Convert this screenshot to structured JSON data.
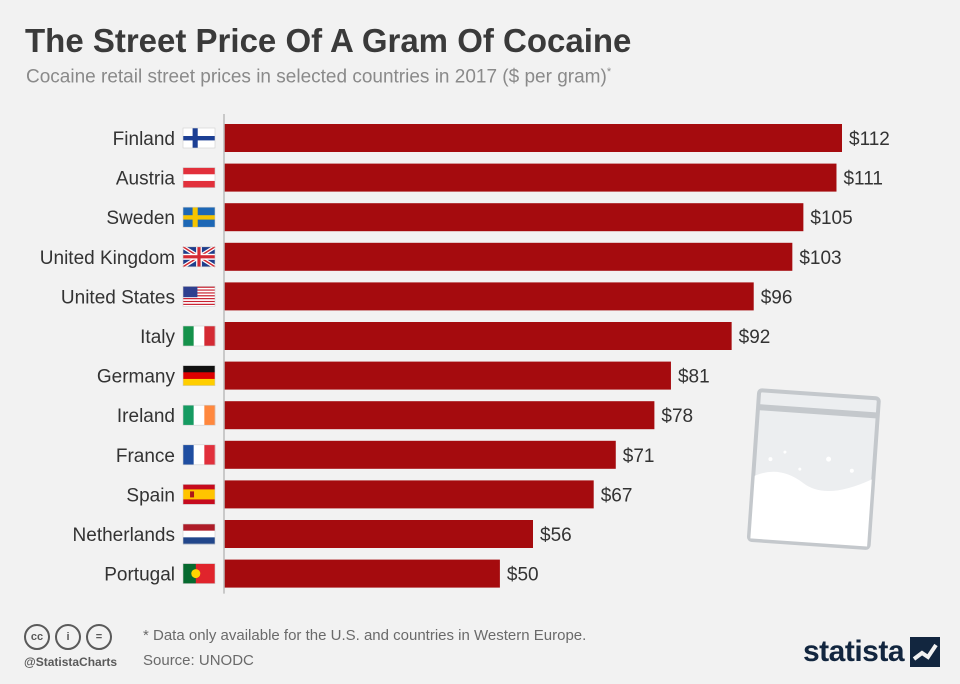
{
  "title": "The Street Price Of A Gram Of Cocaine",
  "subtitle": "Cocaine retail street prices in selected countries in 2017 ($ per gram)",
  "subtitle_marker": "*",
  "footnote": "* Data only available for the U.S. and countries in Western Europe.",
  "source": "Source: UNODC",
  "handle": "@StatistaCharts",
  "brand": "statista",
  "license_icons": [
    "cc-icon",
    "attribution-icon",
    "no-derivatives-icon"
  ],
  "license_icon_text": [
    "cc",
    "i",
    "="
  ],
  "colors": {
    "bar": "#a50b0e",
    "background": "#f2f2f2",
    "axis": "#bbbbbb",
    "text": "#333333"
  },
  "chart_data": {
    "type": "bar",
    "orientation": "horizontal",
    "title": "The Street Price Of A Gram Of Cocaine",
    "xlabel": "",
    "ylabel": "",
    "xlim": [
      0,
      112
    ],
    "value_prefix": "$",
    "unit": "$ per gram",
    "categories": [
      "Finland",
      "Austria",
      "Sweden",
      "United Kingdom",
      "United States",
      "Italy",
      "Germany",
      "Ireland",
      "France",
      "Spain",
      "Netherlands",
      "Portugal"
    ],
    "values": [
      112,
      111,
      105,
      103,
      96,
      92,
      81,
      78,
      71,
      67,
      56,
      50
    ],
    "labels": [
      "$112",
      "$111",
      "$105",
      "$103",
      "$96",
      "$92",
      "$81",
      "$78",
      "$71",
      "$67",
      "$56",
      "$50"
    ],
    "flags": [
      "finland-flag",
      "austria-flag",
      "sweden-flag",
      "uk-flag",
      "us-flag",
      "italy-flag",
      "germany-flag",
      "ireland-flag",
      "france-flag",
      "spain-flag",
      "netherlands-flag",
      "portugal-flag"
    ]
  }
}
